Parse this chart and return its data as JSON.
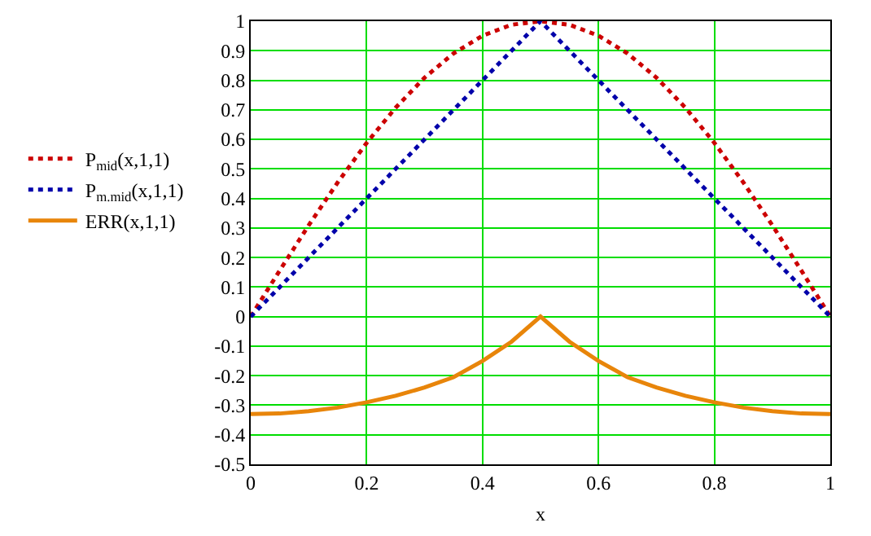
{
  "chart_data": {
    "type": "line",
    "xlabel": "x",
    "x": [
      0,
      0.05,
      0.1,
      0.15,
      0.2,
      0.25,
      0.3,
      0.35,
      0.4,
      0.45,
      0.5,
      0.55,
      0.6,
      0.65,
      0.7,
      0.75,
      0.8,
      0.85,
      0.9,
      0.95,
      1
    ],
    "series": [
      {
        "name": "P$_{mid}$(x,1,1)",
        "color": "#cc0000",
        "line_style": "dotted",
        "values": [
          0,
          0.156,
          0.309,
          0.454,
          0.588,
          0.707,
          0.809,
          0.891,
          0.951,
          0.988,
          1,
          0.988,
          0.951,
          0.891,
          0.809,
          0.707,
          0.588,
          0.454,
          0.309,
          0.156,
          0
        ]
      },
      {
        "name": "P$_{m.mid}$(x,1,1)",
        "color": "#0000aa",
        "line_style": "dotted",
        "values": [
          0,
          0.1,
          0.2,
          0.3,
          0.4,
          0.5,
          0.6,
          0.7,
          0.8,
          0.9,
          1,
          0.9,
          0.8,
          0.7,
          0.6,
          0.5,
          0.4,
          0.3,
          0.2,
          0.1,
          0
        ]
      },
      {
        "name": "ERR(x,1,1)",
        "color": "#e8850a",
        "line_style": "solid",
        "values": [
          -0.33,
          -0.328,
          -0.32,
          -0.308,
          -0.29,
          -0.268,
          -0.24,
          -0.205,
          -0.15,
          -0.085,
          0,
          -0.085,
          -0.15,
          -0.205,
          -0.24,
          -0.268,
          -0.29,
          -0.308,
          -0.32,
          -0.328,
          -0.33
        ]
      }
    ],
    "xlim": [
      0,
      1
    ],
    "xticks": [
      0,
      0.2,
      0.4,
      0.6,
      0.8,
      1
    ],
    "ylim": [
      -0.5,
      1
    ],
    "yticks": [
      -0.5,
      -0.4,
      -0.3,
      -0.2,
      -0.1,
      0,
      0.1,
      0.2,
      0.3,
      0.4,
      0.5,
      0.6,
      0.7,
      0.8,
      0.9,
      1
    ],
    "grid": true,
    "legend": "left",
    "marker": "none"
  }
}
